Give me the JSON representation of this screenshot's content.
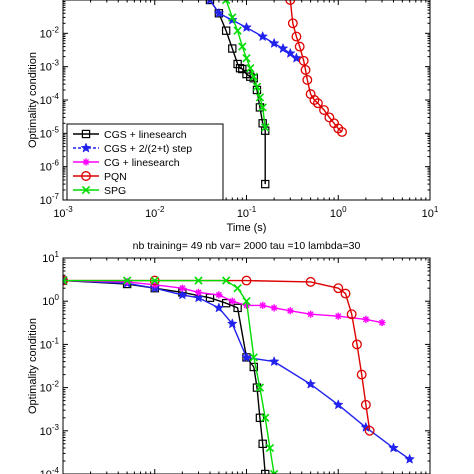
{
  "chart_data": [
    {
      "type": "line",
      "title": "",
      "xlabel": "Time (s)",
      "ylabel": "Optimality condition",
      "x_scale": "log",
      "y_scale": "log",
      "xlim": [
        0.001,
        10
      ],
      "ylim": [
        1e-07,
        0.1
      ],
      "x_ticks": [
        {
          "v": 0.001,
          "b": "10",
          "e": "-3"
        },
        {
          "v": 0.01,
          "b": "10",
          "e": "-2"
        },
        {
          "v": 0.1,
          "b": "10",
          "e": "-1"
        },
        {
          "v": 1,
          "b": "10",
          "e": "0"
        },
        {
          "v": 10,
          "b": "10",
          "e": "1"
        }
      ],
      "y_ticks": [
        {
          "v": 1e-07,
          "b": "10",
          "e": "-7"
        },
        {
          "v": 1e-06,
          "b": "10",
          "e": "-6"
        },
        {
          "v": 1e-05,
          "b": "10",
          "e": "-5"
        },
        {
          "v": 0.0001,
          "b": "10",
          "e": "-4"
        },
        {
          "v": 0.001,
          "b": "10",
          "e": "-3"
        },
        {
          "v": 0.01,
          "b": "10",
          "e": "-2"
        }
      ],
      "legend_placement": "bottom-left",
      "series": [
        {
          "name": "CGS + linesearch",
          "color": "#000000",
          "marker": "square",
          "x": [
            0.04,
            0.05,
            0.06,
            0.07,
            0.08,
            0.085,
            0.09,
            0.1,
            0.11,
            0.12,
            0.13,
            0.14,
            0.15,
            0.16,
            0.16
          ],
          "y": [
            0.1,
            0.04,
            0.012,
            0.0035,
            0.0012,
            0.0009,
            0.00085,
            0.0006,
            0.0005,
            0.00045,
            0.0002,
            6e-05,
            2e-05,
            1.2e-05,
            3e-07
          ]
        },
        {
          "name": "CGS + 2/(2+t) step",
          "color": "#2222ee",
          "marker": "star",
          "x": [
            0.04,
            0.05,
            0.07,
            0.1,
            0.15,
            0.2,
            0.25,
            0.3,
            0.35
          ],
          "y": [
            0.1,
            0.04,
            0.025,
            0.015,
            0.008,
            0.005,
            0.0035,
            0.0025,
            0.0018
          ]
        },
        {
          "name": "CG + linesearch",
          "color": "#ff00ff",
          "marker": "asterisk",
          "x": [],
          "y": []
        },
        {
          "name": "PQN",
          "color": "#dd0000",
          "marker": "circle",
          "x": [
            0.3,
            0.32,
            0.35,
            0.38,
            0.42,
            0.44,
            0.46,
            0.5,
            0.55,
            0.6,
            0.7,
            0.8,
            0.9,
            1.0,
            1.1
          ],
          "y": [
            0.1,
            0.02,
            0.008,
            0.004,
            0.0015,
            0.0008,
            0.0004,
            0.00015,
            0.0001,
            8e-05,
            5e-05,
            3e-05,
            2e-05,
            1.4e-05,
            1.1e-05
          ]
        },
        {
          "name": "SPG",
          "color": "#00dd00",
          "marker": "cross",
          "x": [
            0.06,
            0.07,
            0.08,
            0.09,
            0.1,
            0.11,
            0.12,
            0.13,
            0.14,
            0.15,
            0.16
          ],
          "y": [
            0.1,
            0.03,
            0.012,
            0.004,
            0.0018,
            0.0009,
            0.0005,
            0.00025,
            0.00012,
            6e-05,
            1.5e-05
          ]
        }
      ]
    },
    {
      "type": "line",
      "title": "nb training= 49  nb var= 2000  tau =10 lambda=30",
      "xlabel": "",
      "ylabel": "Optimality condition",
      "x_scale": "log",
      "y_scale": "log",
      "xlim": [
        0.001,
        10
      ],
      "ylim": [
        0.0001,
        10
      ],
      "y_ticks": [
        {
          "v": 0.0001,
          "b": "10",
          "e": "-4"
        },
        {
          "v": 0.001,
          "b": "10",
          "e": "-3"
        },
        {
          "v": 0.01,
          "b": "10",
          "e": "-2"
        },
        {
          "v": 0.1,
          "b": "10",
          "e": "-1"
        },
        {
          "v": 1,
          "b": "10",
          "e": "0"
        },
        {
          "v": 10,
          "b": "10",
          "e": "1"
        }
      ],
      "series": [
        {
          "color": "#000000",
          "marker": "square",
          "x": [
            0.001,
            0.005,
            0.01,
            0.02,
            0.04,
            0.06,
            0.08,
            0.1,
            0.12,
            0.13,
            0.14,
            0.15,
            0.16
          ],
          "y": [
            3,
            2.5,
            2,
            1.6,
            1.2,
            0.9,
            0.7,
            0.05,
            0.03,
            0.01,
            0.002,
            0.0005,
            0.0001
          ]
        },
        {
          "color": "#2222ee",
          "marker": "star",
          "x": [
            0.001,
            0.005,
            0.01,
            0.02,
            0.03,
            0.05,
            0.07,
            0.1,
            0.2,
            0.5,
            1,
            2,
            4,
            6
          ],
          "y": [
            3,
            2.6,
            2,
            1.4,
            1.2,
            0.7,
            0.3,
            0.05,
            0.04,
            0.012,
            0.004,
            0.0012,
            0.0004,
            0.00022
          ]
        },
        {
          "color": "#ff00ff",
          "marker": "asterisk",
          "x": [
            0.001,
            0.005,
            0.01,
            0.02,
            0.03,
            0.05,
            0.07,
            0.1,
            0.15,
            0.2,
            0.3,
            0.5,
            1,
            2,
            3
          ],
          "y": [
            3,
            2.8,
            2.4,
            2,
            1.6,
            1.4,
            1,
            0.8,
            0.8,
            0.7,
            0.6,
            0.5,
            0.45,
            0.38,
            0.32
          ]
        },
        {
          "color": "#dd0000",
          "marker": "circle",
          "x": [
            0.001,
            0.01,
            0.1,
            0.5,
            1.0,
            1.2,
            1.4,
            1.6,
            1.8,
            2.0,
            2.2
          ],
          "y": [
            3,
            3,
            3,
            2.8,
            2,
            1.5,
            0.5,
            0.1,
            0.02,
            0.004,
            0.001
          ]
        },
        {
          "color": "#00dd00",
          "marker": "cross",
          "x": [
            0.001,
            0.005,
            0.01,
            0.03,
            0.06,
            0.08,
            0.1,
            0.12,
            0.14,
            0.16,
            0.18,
            0.2
          ],
          "y": [
            3,
            3,
            3,
            3,
            3,
            2,
            1,
            0.05,
            0.01,
            0.002,
            0.0004,
            0.0001
          ]
        }
      ]
    }
  ]
}
